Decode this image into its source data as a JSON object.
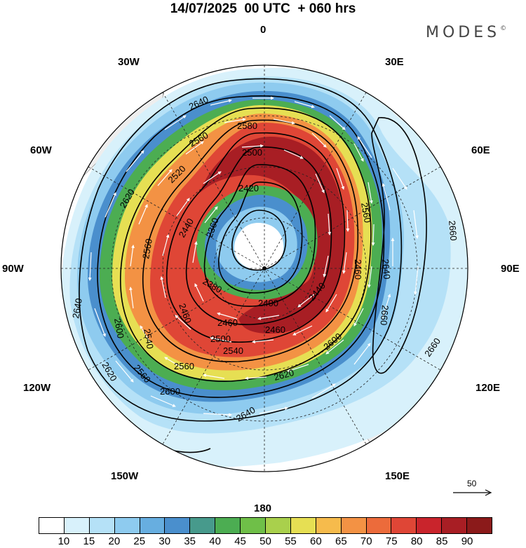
{
  "title": "14/07/2025  00 UTC  + 060 hrs",
  "brand": {
    "name": "MODES",
    "mark": "©"
  },
  "longitude_labels": [
    {
      "id": "lon-0",
      "text": "0"
    },
    {
      "id": "lon-30e",
      "text": "30E"
    },
    {
      "id": "lon-60e",
      "text": "60E"
    },
    {
      "id": "lon-90e",
      "text": "90E"
    },
    {
      "id": "lon-120e",
      "text": "120E"
    },
    {
      "id": "lon-150e",
      "text": "150E"
    },
    {
      "id": "lon-180",
      "text": "180"
    },
    {
      "id": "lon-150w",
      "text": "150W"
    },
    {
      "id": "lon-120w",
      "text": "120W"
    },
    {
      "id": "lon-90w",
      "text": "90W"
    },
    {
      "id": "lon-60w",
      "text": "60W"
    },
    {
      "id": "lon-30w",
      "text": "30W"
    }
  ],
  "contour_labels": [
    "2640",
    "2580",
    "2560",
    "2500",
    "2420",
    "2520",
    "2620",
    "2560",
    "2440",
    "2360",
    "2600",
    "2540",
    "2460",
    "2640",
    "2620",
    "2560",
    "2500",
    "2460",
    "2400",
    "2380",
    "2460",
    "2540",
    "2560",
    "2600",
    "2620",
    "2640",
    "2640",
    "2660",
    "2640",
    "2660",
    "2660",
    "2560",
    "2600",
    "2460",
    "2440"
  ],
  "vector_reference": {
    "value": "50"
  },
  "colorbar": {
    "colors": [
      "#ffffff",
      "#d8f1fb",
      "#b5e1f7",
      "#8ecbef",
      "#67aee0",
      "#4a8fcd",
      "#479a8c",
      "#4cad52",
      "#6fbf48",
      "#a9d04c",
      "#e6df53",
      "#f6bb4c",
      "#f39244",
      "#ec6b3b",
      "#df4636",
      "#c9242c",
      "#a81e24",
      "#8b1a1a"
    ],
    "labels": [
      "10",
      "15",
      "20",
      "25",
      "30",
      "35",
      "40",
      "45",
      "50",
      "55",
      "60",
      "65",
      "70",
      "75",
      "80",
      "85",
      "90"
    ]
  }
}
